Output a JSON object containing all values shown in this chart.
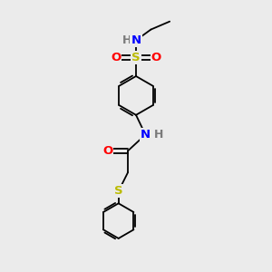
{
  "bg_color": "#ebebeb",
  "bond_color": "#000000",
  "bond_width": 1.3,
  "S_color": "#bbbb00",
  "N_color": "#0000ff",
  "O_color": "#ff0000",
  "H_color": "#7a7a7a",
  "font_size_atom": 9.5,
  "fig_bg": "#ebebeb",
  "xlim": [
    0,
    10
  ],
  "ylim": [
    0,
    10
  ]
}
